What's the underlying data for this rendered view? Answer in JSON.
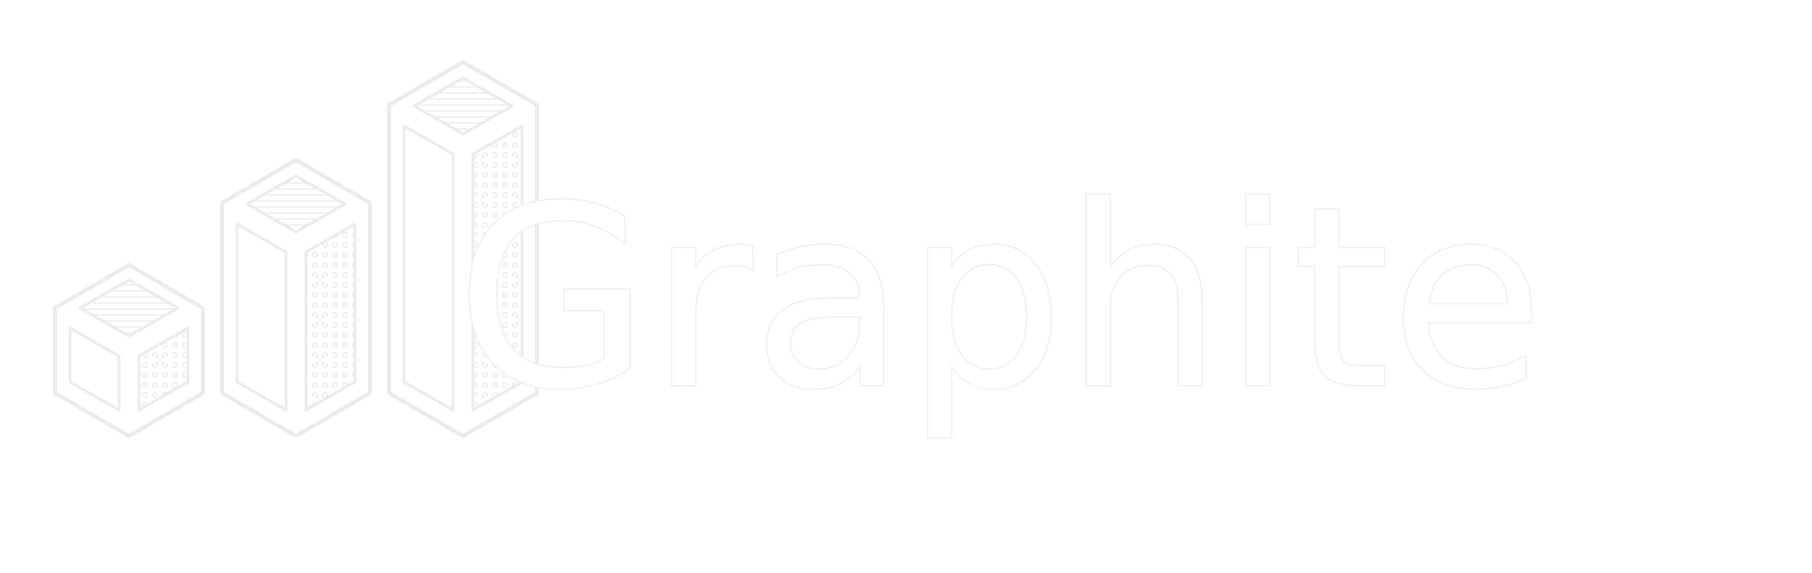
{
  "logo": {
    "wordmark": "Graphite",
    "colors": {
      "background": "#ffffff",
      "mark_stroke": "#ececea",
      "mark_fill": "#ffffff",
      "wordmark_fill": "#ffffff",
      "wordmark_stroke": "#f2f0f0"
    },
    "icon": "bar-chart-3d-icon"
  }
}
